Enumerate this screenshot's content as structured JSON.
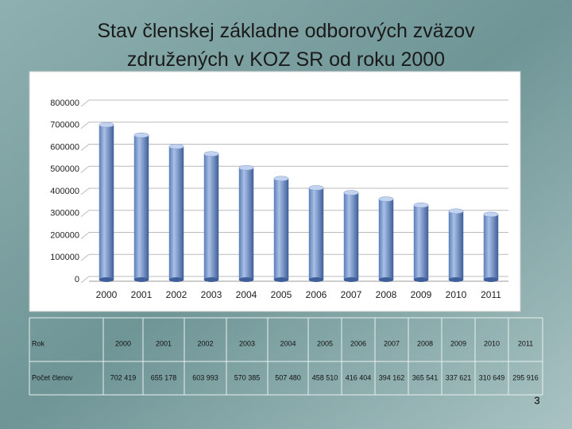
{
  "chart_data": {
    "type": "bar",
    "title": "Stav členskej základne odborových zväzov združených v KOZ SR od roku 2000",
    "categories": [
      "2000",
      "2001",
      "2002",
      "2003",
      "2004",
      "2005",
      "2006",
      "2007",
      "2008",
      "2009",
      "2010",
      "2011"
    ],
    "values": [
      702419,
      655178,
      603993,
      570385,
      507480,
      458510,
      416404,
      394162,
      365541,
      337621,
      310649,
      295916
    ],
    "value_labels": [
      "702 419",
      "655 178",
      "603 993",
      "570 385",
      "507 480",
      "458 510",
      "416 404",
      "394 162",
      "365 541",
      "337 621",
      "310 649",
      "295 916"
    ],
    "color": "#5b7fbf",
    "ylim": [
      0,
      800000
    ],
    "yticks": [
      0,
      100000,
      200000,
      300000,
      400000,
      500000,
      600000,
      700000,
      800000
    ],
    "grid": true,
    "table_row_labels": [
      "Rok",
      "Počet členov"
    ]
  },
  "page_number": "3"
}
